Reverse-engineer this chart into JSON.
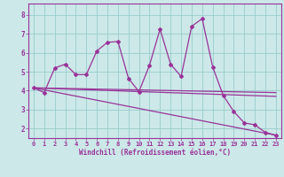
{
  "background_color": "#cce8e8",
  "line_color": "#993399",
  "grid_color": "#99cccc",
  "spine_color": "#993399",
  "xlabel": "Windchill (Refroidissement éolien,°C)",
  "xlabel_color": "#993399",
  "tick_color": "#993399",
  "xlim": [
    -0.5,
    23.5
  ],
  "ylim": [
    1.5,
    8.6
  ],
  "yticks": [
    2,
    3,
    4,
    5,
    6,
    7,
    8
  ],
  "xticks": [
    0,
    1,
    2,
    3,
    4,
    5,
    6,
    7,
    8,
    9,
    10,
    11,
    12,
    13,
    14,
    15,
    16,
    17,
    18,
    19,
    20,
    21,
    22,
    23
  ],
  "series1_x": [
    0,
    1,
    2,
    3,
    4,
    5,
    6,
    7,
    8,
    9,
    10,
    11,
    12,
    13,
    14,
    15,
    16,
    17,
    18,
    19,
    20,
    21,
    22,
    23
  ],
  "series1_y": [
    4.15,
    3.9,
    5.2,
    5.4,
    4.85,
    4.85,
    6.1,
    6.55,
    6.6,
    4.65,
    3.95,
    5.35,
    7.25,
    5.4,
    4.75,
    7.4,
    7.8,
    5.25,
    3.75,
    2.9,
    2.3,
    2.2,
    1.8,
    1.65
  ],
  "trend1_x": [
    0,
    23
  ],
  "trend1_y": [
    4.15,
    3.7
  ],
  "trend2_x": [
    0,
    23
  ],
  "trend2_y": [
    4.15,
    1.65
  ],
  "trend3_x": [
    0,
    23
  ],
  "trend3_y": [
    4.15,
    3.9
  ]
}
